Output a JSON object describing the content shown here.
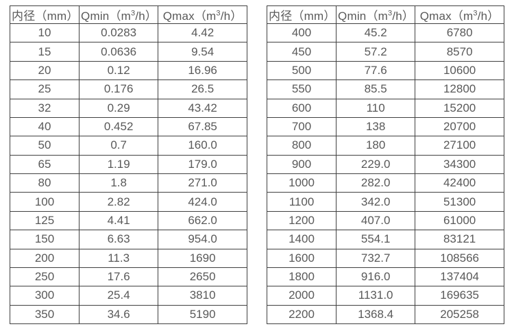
{
  "colors": {
    "background": "#ffffff",
    "border": "#404040",
    "text": "#595959"
  },
  "chart_data": [
    {
      "type": "table",
      "name": "flow-table-small-diameters",
      "columns": [
        "内径（mm）",
        "Qmin（m³/h）",
        "Qmax（m³/h）"
      ],
      "rows": [
        [
          "10",
          "0.0283",
          "4.42"
        ],
        [
          "15",
          "0.0636",
          "9.54"
        ],
        [
          "20",
          "0.12",
          "16.96"
        ],
        [
          "25",
          "0.176",
          "26.5"
        ],
        [
          "32",
          "0.29",
          "43.42"
        ],
        [
          "40",
          "0.452",
          "67.85"
        ],
        [
          "50",
          "0.7",
          "160.0"
        ],
        [
          "65",
          "1.19",
          "179.0"
        ],
        [
          "80",
          "1.8",
          "271.0"
        ],
        [
          "100",
          "2.82",
          "424.0"
        ],
        [
          "125",
          "4.41",
          "662.0"
        ],
        [
          "150",
          "6.63",
          "954.0"
        ],
        [
          "200",
          "11.3",
          "1690"
        ],
        [
          "250",
          "17.6",
          "2650"
        ],
        [
          "300",
          "25.4",
          "3810"
        ],
        [
          "350",
          "34.6",
          "5190"
        ]
      ]
    },
    {
      "type": "table",
      "name": "flow-table-large-diameters",
      "columns": [
        "内径（mm）",
        "Qmin（m³/h）",
        "Qmax（m³/h）"
      ],
      "rows": [
        [
          "400",
          "45.2",
          "6780"
        ],
        [
          "450",
          "57.2",
          "8570"
        ],
        [
          "500",
          "77.6",
          "10600"
        ],
        [
          "550",
          "85.5",
          "12800"
        ],
        [
          "600",
          "110",
          "15200"
        ],
        [
          "700",
          "138",
          "20700"
        ],
        [
          "800",
          "180",
          "27100"
        ],
        [
          "900",
          "229.0",
          "34300"
        ],
        [
          "1000",
          "282.0",
          "42400"
        ],
        [
          "1100",
          "342.0",
          "51300"
        ],
        [
          "1200",
          "407.0",
          "61000"
        ],
        [
          "1400",
          "554.1",
          "83121"
        ],
        [
          "1600",
          "732.7",
          "108566"
        ],
        [
          "1800",
          "916.0",
          "137404"
        ],
        [
          "2000",
          "1131.0",
          "169635"
        ],
        [
          "2200",
          "1368.4",
          "205258"
        ]
      ]
    }
  ]
}
